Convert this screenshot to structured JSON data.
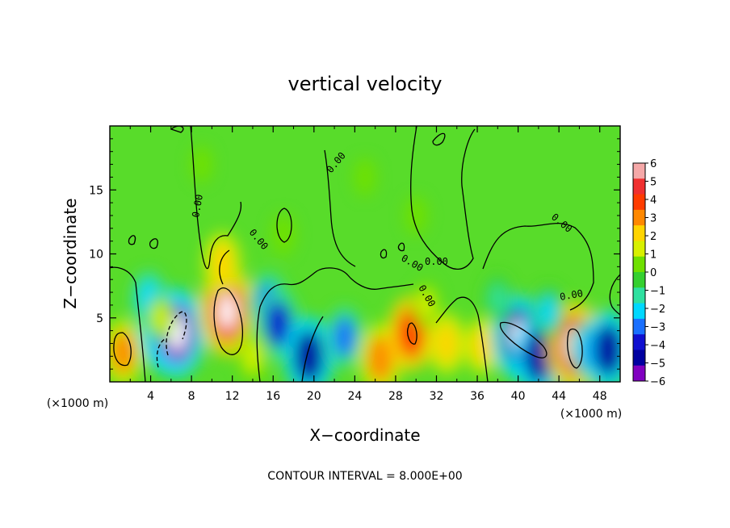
{
  "chart_data": {
    "type": "heatmap",
    "title": "vertical velocity",
    "xlabel": "X−coordinate",
    "ylabel": "Z−coordinate",
    "x_unit_left": "(×1000 m)",
    "x_unit_right": "(×1000 m)",
    "xlim": [
      0,
      50
    ],
    "ylim": [
      0,
      20
    ],
    "xticks": [
      4,
      8,
      12,
      16,
      20,
      24,
      28,
      32,
      36,
      40,
      44,
      48
    ],
    "xtick_labels": [
      "4",
      "8",
      "12",
      "16",
      "20",
      "24",
      "28",
      "32",
      "36",
      "40",
      "44",
      "48"
    ],
    "yticks": [
      5,
      10,
      15
    ],
    "ytick_labels": [
      "5",
      "10",
      "15"
    ],
    "colorbar": {
      "ticks": [
        6,
        5,
        4,
        3,
        2,
        1,
        0,
        -1,
        -2,
        -3,
        -4,
        -5,
        -6
      ],
      "tick_labels": [
        "6",
        "5",
        "4",
        "3",
        "2",
        "1",
        "0",
        "−1",
        "−2",
        "−3",
        "−4",
        "−5",
        "−6"
      ],
      "colors": [
        "#f5a8a8",
        "#f03030",
        "#ff3c00",
        "#ff8800",
        "#ffd400",
        "#d8f000",
        "#6fe000",
        "#35d030",
        "#2fe0a0",
        "#00d8ff",
        "#1a70ff",
        "#1010d0",
        "#0000a0",
        "#8000c0"
      ]
    },
    "contour_labels": [
      "0.00",
      "0.00",
      "0.00",
      "0.00",
      "0.00",
      "0.00",
      "0.00",
      "0.00"
    ],
    "footer": "CONTOUR INTERVAL = 8.000E+00",
    "blobs": [
      {
        "x": 1.3,
        "z": 2.3,
        "w": 3.5
      },
      {
        "x": 5.5,
        "z": 4.0,
        "w": -5.5
      },
      {
        "x": 6.6,
        "z": 3.8,
        "w": -6.0
      },
      {
        "x": 3.8,
        "z": 6.5,
        "w": -2.5
      },
      {
        "x": 5.0,
        "z": 5.0,
        "w": 1.5
      },
      {
        "x": 11.5,
        "z": 5.5,
        "w": 6.0
      },
      {
        "x": 11.0,
        "z": 9.3,
        "w": 3.0
      },
      {
        "x": 15.5,
        "z": 6.0,
        "w": -3.5
      },
      {
        "x": 16.5,
        "z": 4.5,
        "w": -4.0
      },
      {
        "x": 17.0,
        "z": 11.5,
        "w": 1.0
      },
      {
        "x": 19.5,
        "z": 2.0,
        "w": -5.0
      },
      {
        "x": 23.0,
        "z": 3.5,
        "w": -3.0
      },
      {
        "x": 26.5,
        "z": 1.8,
        "w": 4.0
      },
      {
        "x": 29.5,
        "z": 3.8,
        "w": 4.5
      },
      {
        "x": 33.0,
        "z": 3.0,
        "w": 3.0
      },
      {
        "x": 36.5,
        "z": 2.8,
        "w": 2.5
      },
      {
        "x": 40.0,
        "z": 3.5,
        "w": -5.5
      },
      {
        "x": 42.0,
        "z": 2.0,
        "w": -5.0
      },
      {
        "x": 45.5,
        "z": 2.8,
        "w": 6.0
      },
      {
        "x": 47.0,
        "z": 2.5,
        "w": -3.0
      },
      {
        "x": 48.8,
        "z": 2.5,
        "w": -5.0
      },
      {
        "x": 14.0,
        "z": 2.0,
        "w": 2.0
      },
      {
        "x": 31.0,
        "z": 6.0,
        "w": 1.5
      },
      {
        "x": 38.0,
        "z": 6.5,
        "w": -1.5
      },
      {
        "x": 43.0,
        "z": 5.5,
        "w": -2.0
      },
      {
        "x": 25.0,
        "z": 16.0,
        "w": 0.6
      },
      {
        "x": 30.0,
        "z": 13.0,
        "w": 0.7
      },
      {
        "x": 9.0,
        "z": 17.0,
        "w": 0.5
      }
    ]
  }
}
